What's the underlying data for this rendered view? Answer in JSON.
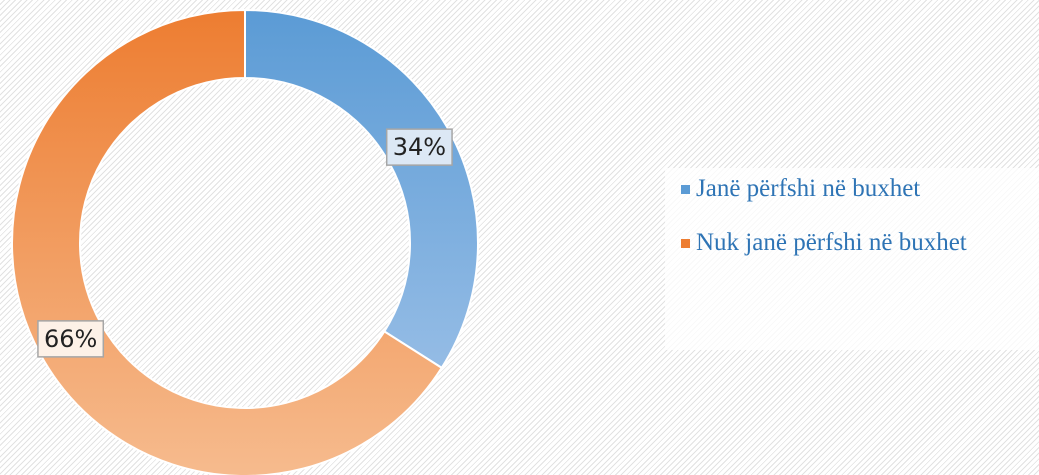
{
  "chart_data": {
    "type": "donut",
    "categories": [
      "Janë përfshi në buxhet",
      "Nuk janë përfshi në buxhet"
    ],
    "values": [
      34,
      66
    ],
    "value_labels": [
      "34%",
      "66%"
    ],
    "colors": [
      "#5b9bd5",
      "#ed7d31"
    ],
    "light_colors": [
      "#a6c6ea",
      "#f6bb8e"
    ],
    "label_fills": [
      "#dce8f5",
      "#fdf1e7"
    ],
    "legend": "right"
  }
}
